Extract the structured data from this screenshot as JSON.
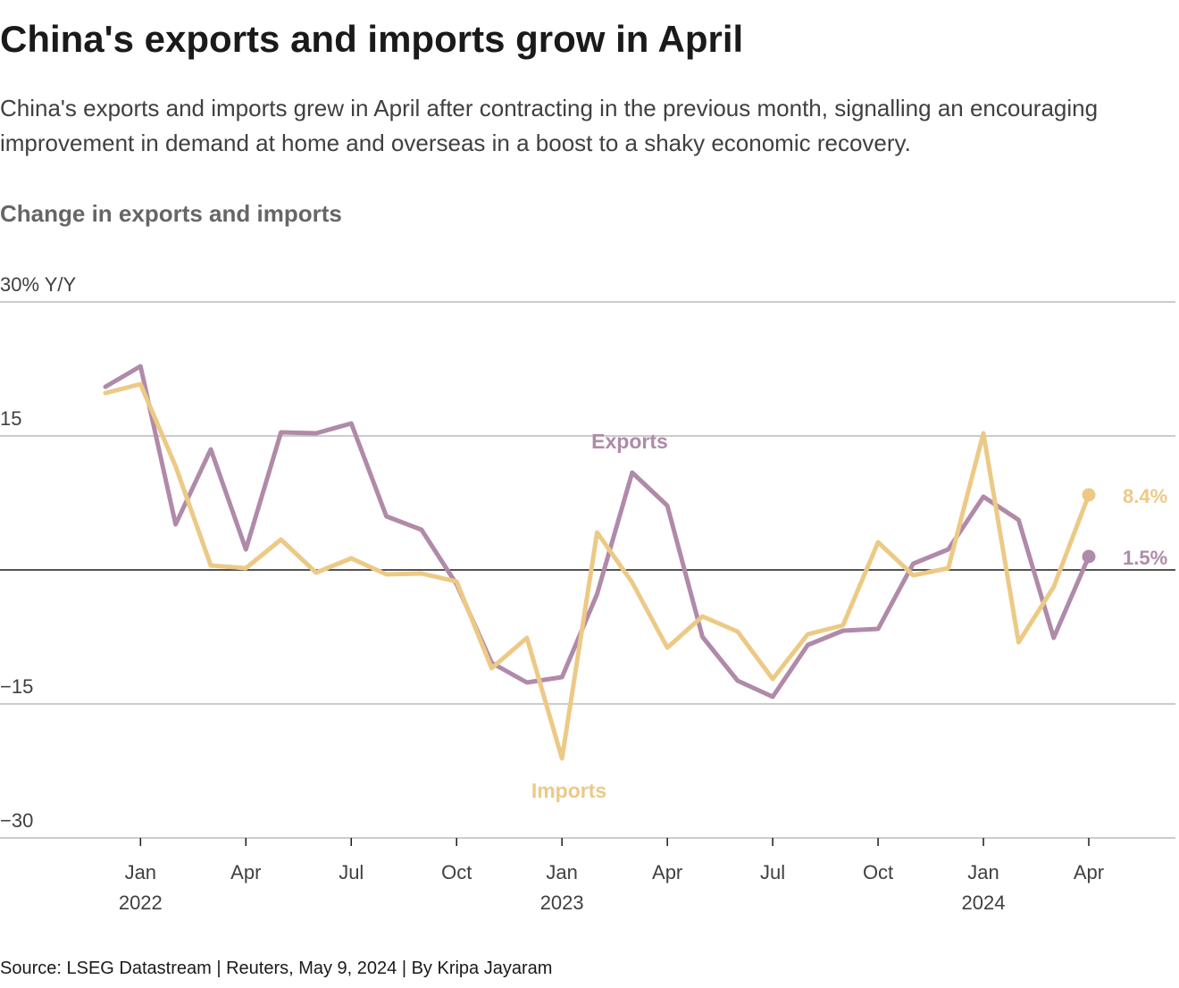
{
  "chart_data": {
    "type": "line",
    "title": "China's exports and imports grow in April",
    "subtitle": "China's exports and imports grew in April after contracting in the previous month, signalling an encouraging improvement in demand at home and overseas in a boost to a shaky economic recovery.",
    "chart_label": "Change in exports and imports",
    "source": "Source: LSEG Datastream | Reuters, May 9, 2024 | By Kripa Jayaram",
    "categories": [
      null,
      "Jan 2022",
      null,
      null,
      "Apr",
      null,
      null,
      "Jul",
      null,
      null,
      "Oct",
      null,
      null,
      "Jan 2023",
      null,
      null,
      "Apr",
      null,
      null,
      "Jul",
      null,
      null,
      "Oct",
      null,
      null,
      "Jan 2024",
      null,
      null,
      "Apr"
    ],
    "ylim": [
      -30,
      30
    ],
    "yticks": [
      {
        "value": -30,
        "label": "−30"
      },
      {
        "value": -15,
        "label": "−15"
      },
      15,
      {
        "value": 30,
        "label": "30% Y/Y"
      }
    ],
    "grid": true,
    "zero_line": true,
    "series": [
      {
        "name": "Exports",
        "color": "#b08aa9",
        "values": [
          20.5,
          22.8,
          5.1,
          13.5,
          2.3,
          15.4,
          15.3,
          16.4,
          6.0,
          4.5,
          -1.6,
          -10.4,
          -12.6,
          -12.0,
          -2.7,
          10.9,
          7.2,
          -7.5,
          -12.4,
          -14.2,
          -8.4,
          -6.8,
          -6.6,
          0.7,
          2.3,
          8.2,
          5.6,
          -7.6,
          1.5
        ],
        "value_labels": [
          null,
          null,
          null,
          null,
          null,
          null,
          null,
          null,
          null,
          null,
          null,
          null,
          null,
          null,
          null,
          null,
          null,
          null,
          null,
          null,
          null,
          null,
          null,
          null,
          null,
          null,
          null,
          null,
          "1.5%"
        ]
      },
      {
        "name": "Imports",
        "color": "#ecca86",
        "values": [
          19.8,
          20.8,
          11.6,
          0.5,
          0.2,
          3.4,
          -0.3,
          1.3,
          -0.5,
          -0.4,
          -1.3,
          -11.0,
          -7.6,
          -21.1,
          4.2,
          -1.4,
          -8.7,
          -5.2,
          -6.9,
          -12.2,
          -7.2,
          -6.2,
          3.1,
          -0.6,
          0.2,
          15.3,
          -8.1,
          -1.9,
          8.4
        ],
        "value_labels": [
          null,
          null,
          null,
          null,
          null,
          null,
          null,
          null,
          null,
          null,
          null,
          null,
          null,
          null,
          null,
          null,
          null,
          null,
          null,
          null,
          null,
          null,
          null,
          null,
          null,
          null,
          null,
          null,
          "8.4%"
        ]
      }
    ]
  }
}
